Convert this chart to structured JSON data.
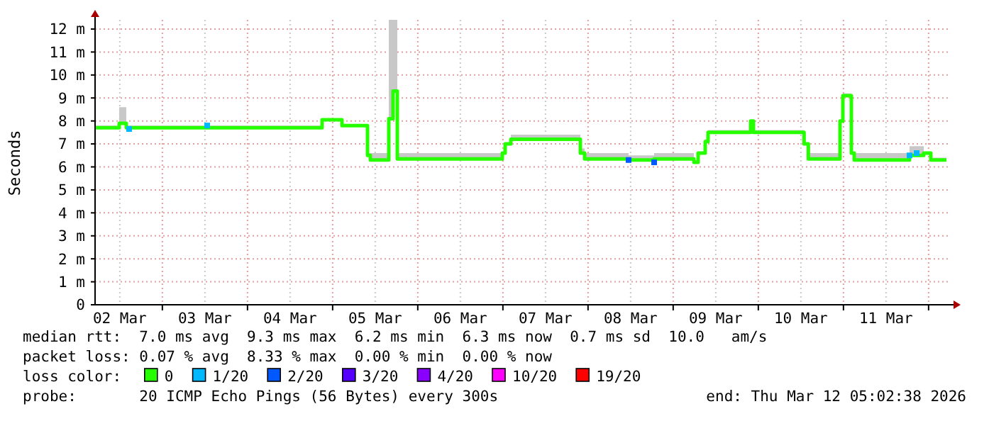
{
  "chart_data": {
    "type": "step",
    "ylabel": "Seconds",
    "legend_title": "loss color:",
    "legend": "bottom",
    "grid": true,
    "xlim": [
      "2026-03-02T05:02",
      "2026-03-12T05:02"
    ],
    "xticks": [
      {
        "value": "2026-03-03T00:00",
        "label": null
      },
      {
        "value": "2026-03-04T00:00",
        "label": null
      },
      {
        "value": "2026-03-05T00:00",
        "label": null
      },
      {
        "value": "2026-03-06T00:00",
        "label": null
      },
      {
        "value": "2026-03-07T00:00",
        "label": null
      },
      {
        "value": "2026-03-08T00:00",
        "label": null
      },
      {
        "value": "2026-03-09T00:00",
        "label": null
      },
      {
        "value": "2026-03-10T00:00",
        "label": null
      },
      {
        "value": "2026-03-11T00:00",
        "label": null
      },
      {
        "value": "2026-03-12T00:00",
        "label": null
      },
      {
        "value": "2026-03-02T12:00",
        "label": "02 Mar"
      },
      {
        "value": "2026-03-03T12:00",
        "label": "03 Mar"
      },
      {
        "value": "2026-03-04T12:00",
        "label": "04 Mar"
      },
      {
        "value": "2026-03-05T12:00",
        "label": "05 Mar"
      },
      {
        "value": "2026-03-06T12:00",
        "label": "06 Mar"
      },
      {
        "value": "2026-03-07T12:00",
        "label": "07 Mar"
      },
      {
        "value": "2026-03-08T12:00",
        "label": "08 Mar"
      },
      {
        "value": "2026-03-09T12:00",
        "label": "09 Mar"
      },
      {
        "value": "2026-03-10T12:00",
        "label": "10 Mar"
      },
      {
        "value": "2026-03-11T12:00",
        "label": "11 Mar"
      }
    ],
    "ylim": [
      0,
      12.4
    ],
    "yticks": [
      {
        "value": 0,
        "label": "0"
      },
      {
        "value": 1,
        "label": "1 m"
      },
      {
        "value": 2,
        "label": "2 m"
      },
      {
        "value": 3,
        "label": "3 m"
      },
      {
        "value": 4,
        "label": "4 m"
      },
      {
        "value": 5,
        "label": "5 m"
      },
      {
        "value": 6,
        "label": "6 m"
      },
      {
        "value": 7,
        "label": "7 m"
      },
      {
        "value": 8,
        "label": "8 m"
      },
      {
        "value": 9,
        "label": "9 m"
      },
      {
        "value": 10,
        "label": "10 m"
      },
      {
        "value": 11,
        "label": "11 m"
      },
      {
        "value": 12,
        "label": "12 m"
      }
    ],
    "series": [
      {
        "name": "0",
        "color": "#26ff00",
        "x": [
          "2026-03-02T05:10",
          "2026-03-02T11:50",
          "2026-03-02T13:50",
          "2026-03-03T12:38",
          "2026-03-04T21:02",
          "2026-03-05T02:38",
          "2026-03-05T09:50",
          "2026-03-05T10:38",
          "2026-03-05T15:50",
          "2026-03-05T17:02",
          "2026-03-05T18:14",
          "2026-03-06T23:50",
          "2026-03-07T00:38",
          "2026-03-07T02:14",
          "2026-03-07T21:50",
          "2026-03-07T23:02",
          "2026-03-08T11:26",
          "2026-03-08T18:38",
          "2026-03-09T05:50",
          "2026-03-09T07:02",
          "2026-03-09T09:02",
          "2026-03-09T09:50",
          "2026-03-09T21:50",
          "2026-03-09T22:38",
          "2026-03-10T12:54",
          "2026-03-10T14:06",
          "2026-03-10T23:02",
          "2026-03-10T23:50",
          "2026-03-11T02:14",
          "2026-03-11T03:02",
          "2026-03-11T18:38",
          "2026-03-11T22:38",
          "2026-03-12T00:38",
          "2026-03-12T05:02"
        ],
        "values": [
          7.7,
          7.9,
          7.7,
          7.7,
          8.05,
          7.8,
          6.5,
          6.3,
          8.1,
          9.3,
          6.35,
          6.6,
          7.0,
          7.2,
          6.6,
          6.35,
          6.3,
          6.35,
          6.2,
          6.6,
          7.1,
          7.5,
          8.0,
          7.5,
          7.0,
          6.35,
          8.0,
          9.1,
          6.6,
          6.3,
          6.5,
          6.6,
          6.3,
          6.3
        ],
        "lower": [
          7.7,
          7.9,
          7.7,
          7.7,
          8.05,
          7.8,
          6.5,
          6.3,
          8.1,
          9.3,
          6.35,
          6.6,
          7.0,
          7.2,
          6.6,
          6.35,
          6.3,
          6.35,
          6.2,
          6.6,
          7.1,
          7.5,
          8.0,
          7.5,
          7.0,
          6.35,
          8.0,
          9.1,
          6.6,
          6.3,
          6.5,
          6.6,
          6.3,
          6.3
        ],
        "upper": [
          7.8,
          8.6,
          7.8,
          7.8,
          8.1,
          7.8,
          6.6,
          6.6,
          12.4,
          12.4,
          6.6,
          6.6,
          7.0,
          7.4,
          6.8,
          6.6,
          6.5,
          6.6,
          6.3,
          6.6,
          7.2,
          7.6,
          8.0,
          7.6,
          7.0,
          6.6,
          8.0,
          9.2,
          6.6,
          6.6,
          6.9,
          6.6,
          6.4,
          6.4
        ]
      },
      {
        "name": "1/20",
        "type": "scatter",
        "color": "#00b8ff",
        "x": [
          "2026-03-02T14:38",
          "2026-03-03T12:38",
          "2026-03-11T18:38",
          "2026-03-11T20:38"
        ],
        "values": [
          7.65,
          7.8,
          6.5,
          6.6
        ]
      },
      {
        "name": "2/20",
        "type": "scatter",
        "color": "#0059ff",
        "x": [
          "2026-03-08T11:26",
          "2026-03-08T18:38"
        ],
        "values": [
          6.3,
          6.2
        ]
      },
      {
        "name": "3/20",
        "type": "scatter",
        "color": "#5500ff"
      },
      {
        "name": "4/20",
        "type": "scatter",
        "color": "#8a00ff"
      },
      {
        "name": "10/20",
        "type": "scatter",
        "color": "#ff00ff"
      },
      {
        "name": "19/20",
        "type": "scatter",
        "color": "#ff0000"
      }
    ],
    "annotations": [
      "median rtt:  7.0 ms avg  9.3 ms max  6.2 ms min  6.3 ms now  0.7 ms sd  10.0   am/s",
      "packet loss: 0.07 % avg  8.33 % max  0.00 % min  0.00 % now",
      "probe:       20 ICMP Echo Pings (56 Bytes) every 300s",
      "end: Thu Mar 12 05:02:38 2026"
    ]
  }
}
